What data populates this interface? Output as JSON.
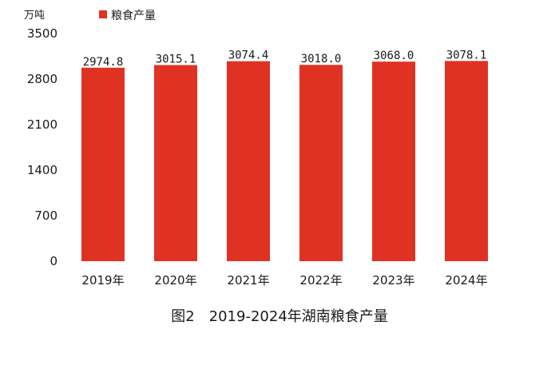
{
  "chart_data": {
    "type": "bar",
    "title": "图2　2019-2024年湖南粮食产量",
    "ylabel": "万吨",
    "categories": [
      "2019年",
      "2020年",
      "2021年",
      "2022年",
      "2023年",
      "2024年"
    ],
    "series": [
      {
        "name": "粮食产量",
        "color": "#e03222",
        "values": [
          2974.8,
          3015.1,
          3074.4,
          3018.0,
          3068.0,
          3078.1
        ],
        "labels": [
          "2974.8",
          "3015.1",
          "3074.4",
          "3018.0",
          "3068.0",
          "3078.1"
        ]
      }
    ],
    "yticks": [
      "0",
      "700",
      "1400",
      "2100",
      "2800",
      "3500"
    ],
    "ylim": [
      0,
      3500
    ],
    "grid": false,
    "legend": "top-left"
  }
}
